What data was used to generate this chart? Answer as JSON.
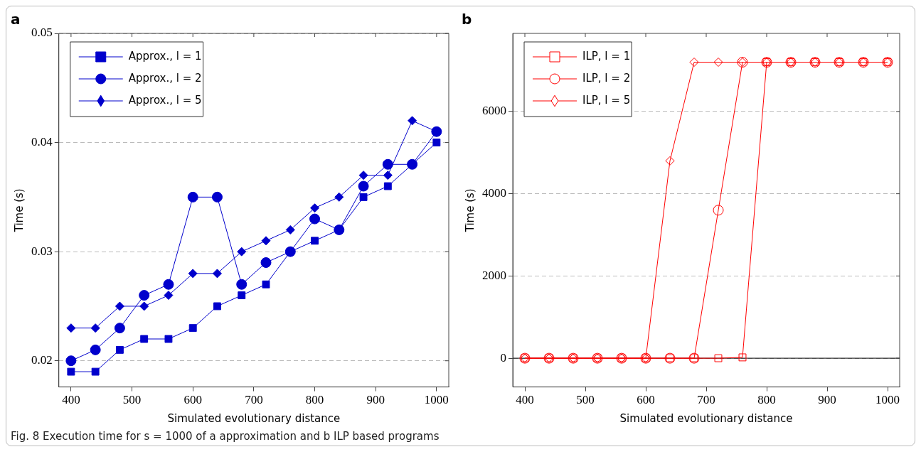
{
  "chart_data": [
    {
      "type": "line",
      "title": "a",
      "xlabel": "Simulated evolutionary distance",
      "ylabel": "Time (s)",
      "x": [
        400,
        440,
        480,
        520,
        560,
        600,
        640,
        680,
        720,
        760,
        800,
        840,
        880,
        920,
        960,
        1000
      ],
      "series": [
        {
          "name": "Approx., l = 1",
          "color": "#0000cc",
          "marker": "square",
          "values": [
            0.019,
            0.019,
            0.021,
            0.022,
            0.022,
            0.023,
            0.025,
            0.026,
            0.027,
            0.03,
            0.031,
            0.032,
            0.035,
            0.036,
            0.038,
            0.04
          ]
        },
        {
          "name": "Approx., l = 2",
          "color": "#0000cc",
          "marker": "circle",
          "values": [
            0.02,
            0.021,
            0.023,
            0.026,
            0.027,
            0.035,
            0.035,
            0.027,
            0.029,
            0.03,
            0.033,
            0.032,
            0.036,
            0.038,
            0.038,
            0.041
          ]
        },
        {
          "name": "Approx., l = 5",
          "color": "#0000cc",
          "marker": "diamond",
          "values": [
            0.023,
            0.023,
            0.025,
            0.025,
            0.026,
            0.028,
            0.028,
            0.03,
            0.031,
            0.032,
            0.034,
            0.035,
            0.037,
            0.037,
            0.042,
            0.041
          ]
        }
      ],
      "xlim": [
        380,
        1020
      ],
      "xticks": [
        400,
        500,
        600,
        700,
        800,
        900,
        1000
      ],
      "ylim": [
        0.0176,
        0.05
      ],
      "yticks": [
        0.02,
        0.03,
        0.04,
        0.05
      ],
      "grid": "y",
      "legend": "top left",
      "line_style": "solid",
      "annotations": [
        "Fig. 8 Execution time for s = 1000 of a approximation and b ILP based programs"
      ]
    },
    {
      "type": "line",
      "title": "b",
      "xlabel": "Simulated evolutionary distance",
      "ylabel": "Time (s)",
      "x": [
        400,
        440,
        480,
        520,
        560,
        600,
        640,
        680,
        720,
        760,
        800,
        840,
        880,
        920,
        960,
        1000
      ],
      "series": [
        {
          "name": "ILP, l = 1",
          "color": "#ff0000",
          "marker": "square",
          "values": [
            0,
            0,
            0,
            0,
            0,
            0,
            0,
            0,
            0,
            20,
            7200,
            7200,
            7200,
            7200,
            7200,
            7200
          ]
        },
        {
          "name": "ILP, l = 2",
          "color": "#ff0000",
          "marker": "circle",
          "values": [
            0,
            0,
            0,
            0,
            0,
            0,
            0,
            0,
            3600,
            7200,
            7200,
            7200,
            7200,
            7200,
            7200,
            7200
          ]
        },
        {
          "name": "ILP, l = 5",
          "color": "#ff0000",
          "marker": "diamond",
          "values": [
            0,
            0,
            0,
            0,
            0,
            0,
            4800,
            7200,
            7200,
            7200,
            7200,
            7200,
            7200,
            7200,
            7200,
            7200
          ]
        }
      ],
      "xlim": [
        380,
        1020
      ],
      "xticks": [
        400,
        500,
        600,
        700,
        800,
        900,
        1000
      ],
      "ylim": [
        -700,
        7900
      ],
      "yticks": [
        0,
        2000,
        4000,
        6000
      ],
      "ref_lines": [
        {
          "axis": "y",
          "value": 0,
          "color": "#000000",
          "line_style": "solid"
        }
      ],
      "grid": "y",
      "legend": "top left",
      "line_style": "solid"
    }
  ]
}
